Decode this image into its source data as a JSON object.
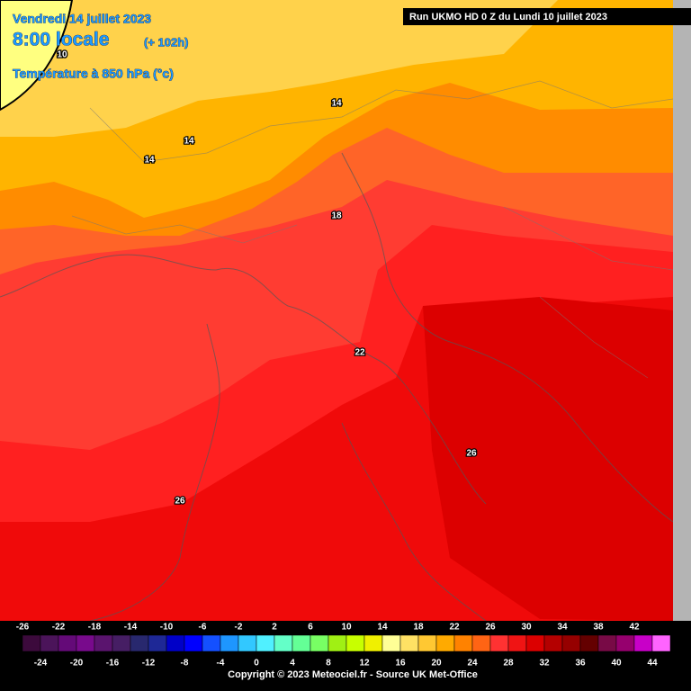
{
  "header": {
    "date": "Vendredi 14 juillet 2023",
    "time": "8:00 locale",
    "lead": "(+ 102h)",
    "field": "Température à 850 hPa (°c)",
    "run": "Run UKMO HD 0 Z du Lundi 10 juillet 2023"
  },
  "contour_labels": [
    10,
    14,
    14,
    14,
    18,
    22,
    26,
    26
  ],
  "legend": {
    "labels": [
      -26,
      -24,
      -22,
      -20,
      -18,
      -16,
      -14,
      -12,
      -10,
      -8,
      -6,
      -4,
      -2,
      0,
      2,
      4,
      6,
      8,
      10,
      12,
      14,
      16,
      18,
      20,
      22,
      24,
      26,
      28,
      30,
      32,
      34,
      36,
      38,
      40,
      42,
      44
    ],
    "colors": [
      "#3c0a3c",
      "#4b145a",
      "#640a78",
      "#780a8c",
      "#5a146e",
      "#461e64",
      "#28286e",
      "#1e2896",
      "#0000c8",
      "#0000ff",
      "#1450ff",
      "#1e96ff",
      "#32c8ff",
      "#50f0ff",
      "#64ffc8",
      "#64ff96",
      "#78ff64",
      "#a0f014",
      "#c8ff00",
      "#f0f000",
      "#ffff96",
      "#ffe164",
      "#ffc832",
      "#ffaa00",
      "#ff8200",
      "#ff6414",
      "#ff3232",
      "#f01414",
      "#dc0000",
      "#b40000",
      "#960000",
      "#640000",
      "#780a46",
      "#96006e",
      "#c800c8",
      "#ff64ff"
    ]
  },
  "footer": {
    "copyright": "Copyright © 2023 Meteociel.fr - Source UK Met-Office"
  }
}
